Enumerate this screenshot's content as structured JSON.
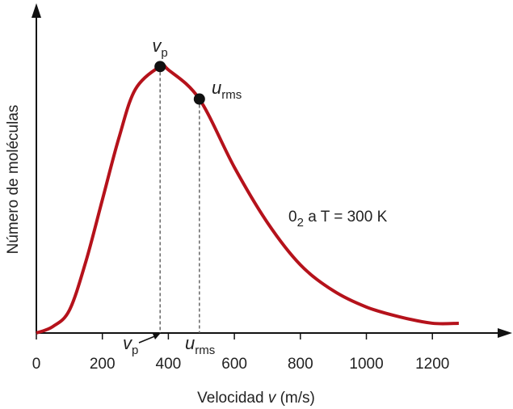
{
  "chart_data": {
    "type": "line",
    "x_label": [
      "Velocidad ",
      "v",
      " (m/s)"
    ],
    "y_label": "Número de moléculas",
    "x": [
      0,
      50,
      100,
      150,
      200,
      250,
      300,
      375,
      400,
      494,
      600,
      700,
      800,
      900,
      1000,
      1100,
      1200,
      1280
    ],
    "series": [
      {
        "color": "#b5121b",
        "values": [
          0,
          0.02,
          0.07,
          0.22,
          0.41,
          0.6,
          0.75,
          0.82,
          0.81,
          0.72,
          0.51,
          0.34,
          0.21,
          0.13,
          0.08,
          0.05,
          0.03,
          0.03
        ]
      }
    ],
    "xlim": [
      0,
      1432
    ],
    "ylim": [
      0,
      1
    ],
    "xticks": [
      0,
      200,
      400,
      600,
      800,
      1000,
      1200
    ],
    "markers": [
      {
        "x": 375,
        "y": 0.82,
        "label": "v",
        "subscript": "p"
      },
      {
        "x": 494,
        "y": 0.72,
        "label": "u",
        "subscript": "rms"
      }
    ],
    "annotation": [
      "0",
      "2",
      " a T = 300 K"
    ]
  }
}
